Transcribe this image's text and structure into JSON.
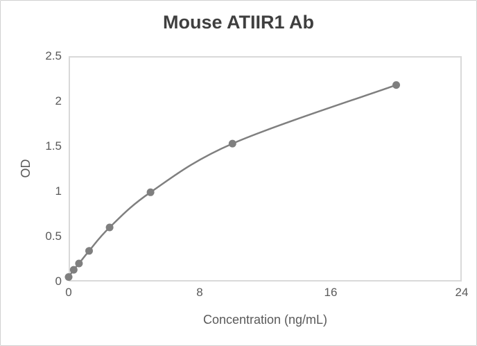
{
  "chart_data": {
    "type": "line",
    "title": "Mouse ATIIR1 Ab",
    "xlabel": "Concentration (ng/mL)",
    "ylabel": "OD",
    "x": [
      0,
      0.31,
      0.63,
      1.25,
      2.5,
      5,
      10,
      20
    ],
    "series": [
      {
        "name": "OD",
        "values": [
          0.05,
          0.13,
          0.2,
          0.34,
          0.6,
          0.99,
          1.53,
          2.18
        ]
      }
    ],
    "xlim": [
      0,
      24
    ],
    "ylim": [
      0,
      2.5
    ],
    "x_ticks": [
      0,
      8,
      16,
      24
    ],
    "y_ticks": [
      0,
      0.5,
      1,
      1.5,
      2,
      2.5
    ],
    "grid": false,
    "legend": "none",
    "marker": "circle",
    "line_smooth": true,
    "colors": {
      "line": "#7f7f7f",
      "marker": "#7f7f7f",
      "title_text": "#3f3f3f",
      "axis_text": "#595959",
      "plot_border": "#d9d9d9",
      "canvas_border": "#d0d0d0",
      "background": "#ffffff"
    }
  }
}
